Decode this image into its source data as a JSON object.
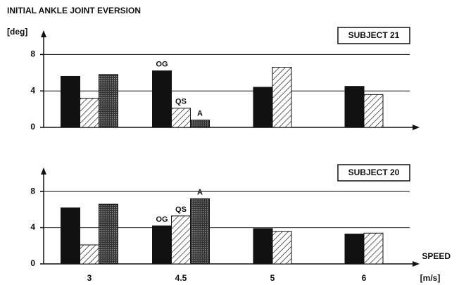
{
  "chart_data": [
    {
      "type": "bar",
      "title": "INITIAL ANKLE JOINT EVERSION",
      "y_label": "[deg]",
      "subtitle": "SUBJECT 21",
      "series": [
        {
          "name": "OG",
          "color": "#111111",
          "pattern": "solid",
          "values": [
            5.6,
            6.2,
            4.4,
            4.5
          ]
        },
        {
          "name": "QS",
          "color": "#111111",
          "pattern": "hatch",
          "values": [
            3.2,
            2.1,
            6.6,
            3.6
          ]
        },
        {
          "name": "A",
          "color": "#111111",
          "pattern": "crosshatch",
          "values": [
            5.8,
            0.8,
            null,
            null
          ]
        }
      ],
      "ylim": [
        0,
        10.5
      ],
      "yticks": [
        0,
        4,
        8
      ],
      "grid": true
    },
    {
      "type": "bar",
      "subtitle": "SUBJECT 20",
      "x_label": "SPEED",
      "x_unit": "[m/s]",
      "categories": [
        "3",
        "4.5",
        "5",
        "6"
      ],
      "series": [
        {
          "name": "OG",
          "color": "#111111",
          "pattern": "solid",
          "values": [
            6.2,
            4.2,
            3.9,
            3.3
          ]
        },
        {
          "name": "QS",
          "color": "#111111",
          "pattern": "hatch",
          "values": [
            2.1,
            5.3,
            3.6,
            3.4
          ]
        },
        {
          "name": "A",
          "color": "#111111",
          "pattern": "crosshatch",
          "values": [
            6.6,
            7.2,
            null,
            null
          ]
        }
      ],
      "ylim": [
        0,
        10.5
      ],
      "yticks": [
        0,
        4,
        8
      ],
      "grid": true
    }
  ]
}
